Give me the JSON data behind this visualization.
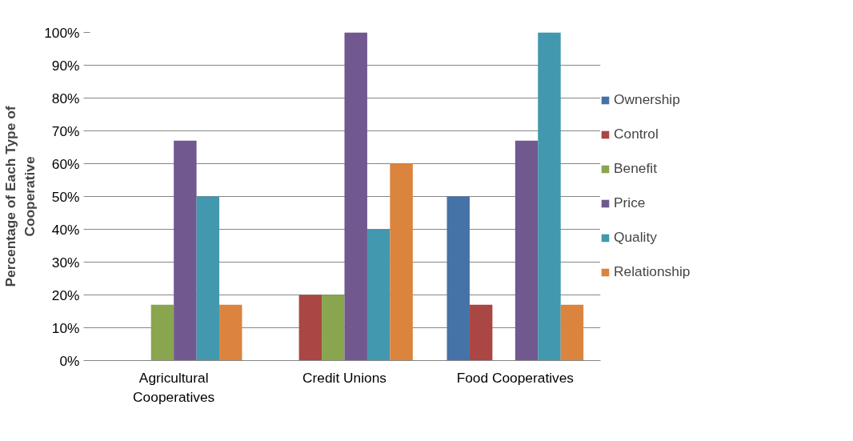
{
  "chart_data": {
    "type": "bar",
    "ylabel": "Percentage of Each Type of Cooperative",
    "categories": [
      "Agricultural Cooperatives",
      "Credit Unions",
      "Food Cooperatives"
    ],
    "series": [
      {
        "name": "Ownership",
        "color": "#4572a7",
        "values": [
          0,
          0,
          50
        ]
      },
      {
        "name": "Control",
        "color": "#aa4643",
        "values": [
          0,
          20,
          17
        ]
      },
      {
        "name": "Benefit",
        "color": "#89a54e",
        "values": [
          17,
          20,
          0
        ]
      },
      {
        "name": "Price",
        "color": "#71588f",
        "values": [
          67,
          100,
          67
        ]
      },
      {
        "name": "Quality",
        "color": "#4198af",
        "values": [
          50,
          40,
          100
        ]
      },
      {
        "name": "Relationship",
        "color": "#db843d",
        "values": [
          17,
          60,
          17
        ]
      }
    ],
    "ylim": [
      0,
      100
    ],
    "yticks": [
      {
        "value": 0,
        "label": "0%"
      },
      {
        "value": 10,
        "label": "10%"
      },
      {
        "value": 20,
        "label": "20%"
      },
      {
        "value": 30,
        "label": "30%"
      },
      {
        "value": 40,
        "label": "40%"
      },
      {
        "value": 50,
        "label": "50%"
      },
      {
        "value": 60,
        "label": "60%"
      },
      {
        "value": 70,
        "label": "70%"
      },
      {
        "value": 80,
        "label": "80%"
      },
      {
        "value": 90,
        "label": "90%"
      },
      {
        "value": 100,
        "label": "100%"
      }
    ],
    "grid": "y",
    "legend": "right"
  }
}
